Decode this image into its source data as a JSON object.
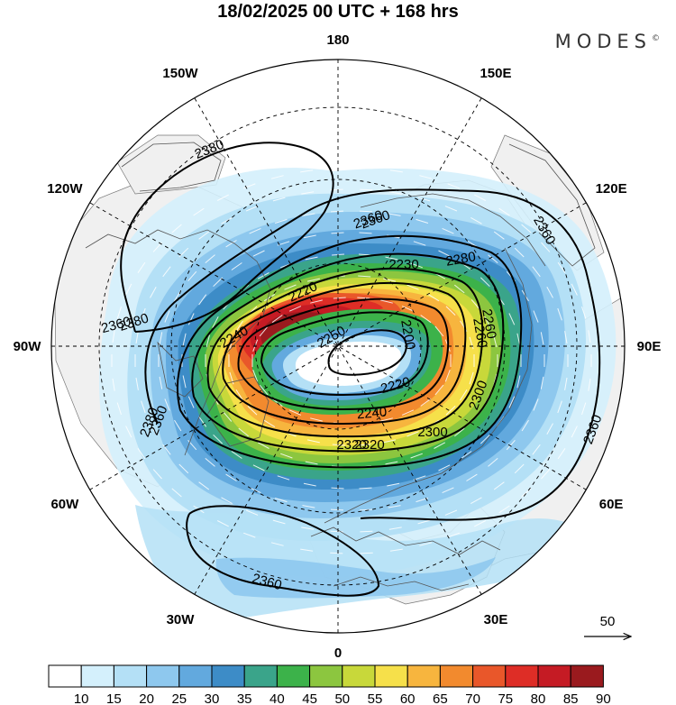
{
  "header": {
    "title": "18/02/2025  00 UTC  + 168 hrs",
    "brand": "MODES",
    "brand_mark": "©"
  },
  "map": {
    "projection": "north-polar-stereographic",
    "longitude_labels": [
      {
        "text": "180",
        "lon": 180
      },
      {
        "text": "150E",
        "lon": 150
      },
      {
        "text": "120E",
        "lon": 120
      },
      {
        "text": "90E",
        "lon": 90
      },
      {
        "text": "60E",
        "lon": 60
      },
      {
        "text": "30E",
        "lon": 30
      },
      {
        "text": "0",
        "lon": 0
      },
      {
        "text": "30W",
        "lon": -30
      },
      {
        "text": "60W",
        "lon": -60
      },
      {
        "text": "90W",
        "lon": -90
      },
      {
        "text": "120W",
        "lon": -120
      },
      {
        "text": "150W",
        "lon": -150
      }
    ],
    "contour_labels": [
      "2380",
      "2360",
      "2380",
      "2360",
      "2360",
      "2240",
      "2280",
      "2230",
      "2220",
      "2260",
      "2250",
      "2200",
      "2220",
      "2240",
      "2260",
      "2300",
      "2320",
      "2320",
      "2300",
      "2360",
      "2360",
      "2360",
      "2380",
      "2360"
    ],
    "reference_vector_label": "50",
    "colors": {
      "land": "#f0f0f0",
      "coast": "#555555",
      "contour": "#000000"
    }
  },
  "colorbar": {
    "ticks": [
      "10",
      "15",
      "20",
      "25",
      "30",
      "35",
      "40",
      "45",
      "50",
      "55",
      "60",
      "65",
      "70",
      "75",
      "80",
      "85",
      "90"
    ],
    "colors": [
      "#ffffff",
      "#d4f0fc",
      "#b4e0f6",
      "#8ec8ee",
      "#62a9de",
      "#3d8cc7",
      "#3aa48a",
      "#3cb24a",
      "#8cc63f",
      "#c8d83a",
      "#f6e04a",
      "#f7b53e",
      "#f28a2e",
      "#e9572a",
      "#de2d26",
      "#c51b24",
      "#9a1a1e"
    ]
  }
}
